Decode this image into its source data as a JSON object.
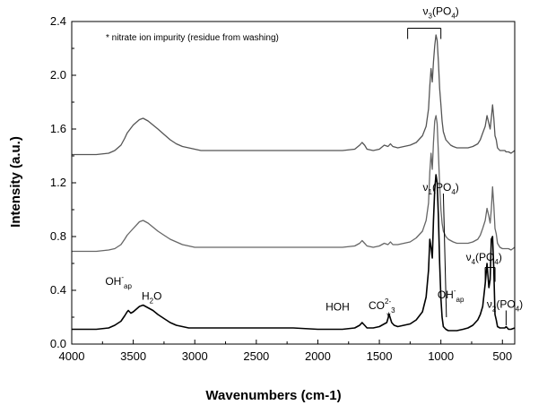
{
  "chart_data": {
    "type": "line",
    "xlabel": "Wavenumbers (cm-1)",
    "ylabel": "Intensity (a.u.)",
    "xlim": [
      4000,
      400
    ],
    "ylim": [
      0.0,
      2.4
    ],
    "x_reversed": true,
    "grid": false,
    "legend": "none",
    "xticks": [
      4000,
      3500,
      3000,
      2500,
      2000,
      1500,
      1000,
      500
    ],
    "yticks": [
      0.0,
      0.4,
      0.8,
      1.2,
      1.6,
      2.0,
      2.4
    ],
    "xtick_labels": [
      "4000",
      "3500",
      "3000",
      "2500",
      "2000",
      "1500",
      "1000",
      "500"
    ],
    "ytick_labels": [
      "0.0",
      "0.4",
      "0.8",
      "1.2",
      "1.6",
      "2.0",
      "2.4"
    ],
    "note": "* nitrate ion impurity (residue from washing)",
    "series": [
      {
        "color": "#555555",
        "x": [
          4000,
          3800,
          3700,
          3650,
          3600,
          3570,
          3550,
          3500,
          3450,
          3420,
          3380,
          3340,
          3300,
          3250,
          3200,
          3150,
          3100,
          3050,
          3000,
          2950,
          2900,
          2800,
          2500,
          2200,
          2000,
          1800,
          1700,
          1660,
          1640,
          1620,
          1600,
          1550,
          1500,
          1460,
          1430,
          1410,
          1390,
          1350,
          1300,
          1250,
          1200,
          1150,
          1120,
          1100,
          1090,
          1080,
          1070,
          1060,
          1050,
          1040,
          1030,
          1020,
          1010,
          1000,
          990,
          980,
          960,
          940,
          920,
          900,
          870,
          820,
          780,
          740,
          700,
          680,
          660,
          640,
          625,
          610,
          600,
          590,
          580,
          570,
          560,
          550,
          540,
          520,
          500,
          480,
          470,
          460,
          450,
          430,
          400
        ],
        "y": [
          1.41,
          1.41,
          1.42,
          1.44,
          1.48,
          1.53,
          1.57,
          1.63,
          1.67,
          1.68,
          1.66,
          1.63,
          1.6,
          1.56,
          1.52,
          1.49,
          1.47,
          1.46,
          1.45,
          1.44,
          1.44,
          1.44,
          1.44,
          1.44,
          1.44,
          1.44,
          1.45,
          1.48,
          1.5,
          1.48,
          1.45,
          1.44,
          1.45,
          1.48,
          1.47,
          1.49,
          1.47,
          1.46,
          1.47,
          1.48,
          1.5,
          1.55,
          1.62,
          1.75,
          1.92,
          2.05,
          1.95,
          2.1,
          2.22,
          2.3,
          2.26,
          2.1,
          1.9,
          1.78,
          1.66,
          1.58,
          1.52,
          1.5,
          1.48,
          1.47,
          1.46,
          1.46,
          1.46,
          1.47,
          1.49,
          1.52,
          1.57,
          1.62,
          1.7,
          1.64,
          1.6,
          1.68,
          1.78,
          1.68,
          1.55,
          1.52,
          1.46,
          1.44,
          1.44,
          1.44,
          1.43,
          1.43,
          1.43,
          1.42,
          1.44
        ]
      },
      {
        "color": "#666666",
        "x": [
          4000,
          3800,
          3700,
          3650,
          3600,
          3570,
          3550,
          3500,
          3450,
          3420,
          3380,
          3340,
          3300,
          3250,
          3200,
          3150,
          3100,
          3050,
          3000,
          2950,
          2900,
          2800,
          2500,
          2200,
          2000,
          1800,
          1700,
          1660,
          1640,
          1620,
          1600,
          1550,
          1500,
          1460,
          1430,
          1410,
          1390,
          1350,
          1300,
          1250,
          1200,
          1150,
          1120,
          1100,
          1090,
          1080,
          1070,
          1060,
          1050,
          1040,
          1030,
          1020,
          1010,
          1000,
          990,
          980,
          960,
          940,
          920,
          900,
          870,
          820,
          780,
          740,
          700,
          680,
          660,
          640,
          625,
          610,
          600,
          590,
          580,
          570,
          560,
          550,
          540,
          520,
          500,
          480,
          470,
          460,
          450,
          430,
          400
        ],
        "y": [
          0.69,
          0.69,
          0.7,
          0.71,
          0.74,
          0.78,
          0.81,
          0.86,
          0.91,
          0.92,
          0.9,
          0.87,
          0.84,
          0.81,
          0.78,
          0.76,
          0.74,
          0.73,
          0.72,
          0.72,
          0.72,
          0.72,
          0.72,
          0.72,
          0.72,
          0.72,
          0.73,
          0.75,
          0.77,
          0.75,
          0.73,
          0.72,
          0.73,
          0.75,
          0.74,
          0.76,
          0.74,
          0.74,
          0.75,
          0.76,
          0.79,
          0.84,
          0.92,
          1.05,
          1.28,
          1.42,
          1.3,
          1.5,
          1.66,
          1.7,
          1.64,
          1.42,
          1.18,
          1.0,
          0.9,
          0.84,
          0.8,
          0.78,
          0.77,
          0.76,
          0.75,
          0.75,
          0.75,
          0.76,
          0.78,
          0.81,
          0.86,
          0.92,
          1.01,
          0.95,
          0.9,
          1.0,
          1.17,
          1.03,
          0.86,
          0.82,
          0.75,
          0.72,
          0.71,
          0.71,
          0.71,
          0.71,
          0.71,
          0.7,
          0.72
        ]
      },
      {
        "color": "#000000",
        "x": [
          4000,
          3800,
          3700,
          3650,
          3600,
          3570,
          3550,
          3540,
          3520,
          3500,
          3450,
          3420,
          3380,
          3340,
          3300,
          3250,
          3200,
          3150,
          3100,
          3050,
          3000,
          2950,
          2900,
          2800,
          2500,
          2200,
          2000,
          1800,
          1700,
          1660,
          1640,
          1620,
          1600,
          1550,
          1500,
          1460,
          1440,
          1420,
          1400,
          1380,
          1350,
          1300,
          1250,
          1200,
          1150,
          1120,
          1100,
          1090,
          1080,
          1070,
          1060,
          1050,
          1040,
          1030,
          1020,
          1010,
          1000,
          990,
          980,
          960,
          940,
          920,
          900,
          870,
          820,
          780,
          740,
          700,
          680,
          660,
          640,
          625,
          610,
          600,
          590,
          580,
          570,
          560,
          550,
          540,
          520,
          500,
          480,
          470,
          460,
          450,
          430,
          400
        ],
        "y": [
          0.11,
          0.11,
          0.12,
          0.14,
          0.17,
          0.21,
          0.24,
          0.25,
          0.23,
          0.24,
          0.28,
          0.29,
          0.27,
          0.25,
          0.22,
          0.19,
          0.16,
          0.14,
          0.13,
          0.12,
          0.12,
          0.12,
          0.12,
          0.12,
          0.12,
          0.12,
          0.11,
          0.11,
          0.12,
          0.14,
          0.16,
          0.14,
          0.12,
          0.12,
          0.13,
          0.15,
          0.16,
          0.22,
          0.16,
          0.14,
          0.13,
          0.14,
          0.15,
          0.18,
          0.24,
          0.35,
          0.55,
          0.78,
          0.72,
          0.64,
          0.92,
          1.15,
          1.26,
          1.2,
          0.95,
          0.6,
          0.34,
          0.2,
          0.13,
          0.11,
          0.1,
          0.1,
          0.1,
          0.1,
          0.11,
          0.12,
          0.14,
          0.18,
          0.22,
          0.28,
          0.45,
          0.6,
          0.42,
          0.48,
          0.78,
          0.8,
          0.55,
          0.22,
          0.18,
          0.13,
          0.12,
          0.12,
          0.12,
          0.13,
          0.12,
          0.11,
          0.11,
          0.12
        ]
      }
    ],
    "annotations": [
      {
        "id": "oh-ap-left",
        "base": "OH",
        "sup": "-",
        "sub": "ap",
        "x": 3620,
        "y": 0.44
      },
      {
        "id": "h2o",
        "base": "H",
        "sub": "2",
        "tail": "O",
        "x": 3350,
        "y": 0.33
      },
      {
        "id": "hoh",
        "text": "HOH",
        "x": 1840,
        "y": 0.25
      },
      {
        "id": "co3",
        "base": "CO",
        "sub": "3",
        "sup": "2-",
        "x": 1480,
        "y": 0.26
      },
      {
        "id": "nitrate-star",
        "text": "*",
        "x": 1425,
        "y": 0.18
      },
      {
        "id": "nu3",
        "greek": "ν",
        "sub": "3",
        "tail": "(PO",
        "sub2": "4",
        "tail2": ")",
        "x": 1000,
        "y": 2.45
      },
      {
        "id": "nu1",
        "greek": "ν",
        "sub": "1",
        "tail": "(PO",
        "sub2": "4",
        "tail2": ")",
        "x": 1000,
        "y": 1.14
      },
      {
        "id": "oh-ap-right",
        "base": "OH",
        "sup": "-",
        "sub": "ap",
        "x": 920,
        "y": 0.34
      },
      {
        "id": "nu4",
        "greek": "ν",
        "sub": "4",
        "tail": "(PO",
        "sub2": "4",
        "tail2": ")",
        "x": 650,
        "y": 0.62
      },
      {
        "id": "nu2",
        "greek": "ν",
        "sub": "2",
        "tail": "(PO",
        "sub2": "4",
        "tail2": ")",
        "x": 480,
        "y": 0.27
      }
    ]
  }
}
